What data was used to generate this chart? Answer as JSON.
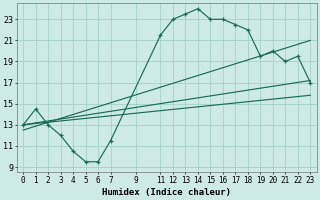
{
  "xlabel": "Humidex (Indice chaleur)",
  "bg_color": "#ceeae6",
  "grid_color": "#a8d4cf",
  "line_color": "#1a6b5a",
  "xlim_min": -0.5,
  "xlim_max": 23.5,
  "ylim_min": 8.5,
  "ylim_max": 24.5,
  "xticks": [
    0,
    1,
    2,
    3,
    4,
    5,
    6,
    7,
    9,
    11,
    12,
    13,
    14,
    15,
    16,
    17,
    18,
    19,
    20,
    21,
    22,
    23
  ],
  "yticks": [
    9,
    11,
    13,
    15,
    17,
    19,
    21,
    23
  ],
  "curve_x": [
    0,
    1,
    2,
    3,
    4,
    5,
    6,
    7,
    11,
    12,
    13,
    14,
    15,
    16,
    17,
    18,
    19,
    20,
    21,
    22,
    23
  ],
  "curve_y": [
    13,
    14.5,
    13,
    12,
    10.5,
    9.5,
    9.5,
    11.5,
    21.5,
    23,
    23.5,
    24,
    23,
    23,
    22.5,
    22,
    19.5,
    20,
    19,
    19.5,
    17
  ],
  "line1_x": [
    0,
    23
  ],
  "line1_y": [
    13.0,
    15.8
  ],
  "line2_x": [
    0,
    23
  ],
  "line2_y": [
    12.5,
    21.0
  ],
  "line3_x": [
    0,
    23
  ],
  "line3_y": [
    13.0,
    17.2
  ],
  "tick_fontsize": 5.5,
  "xlabel_fontsize": 6.5
}
